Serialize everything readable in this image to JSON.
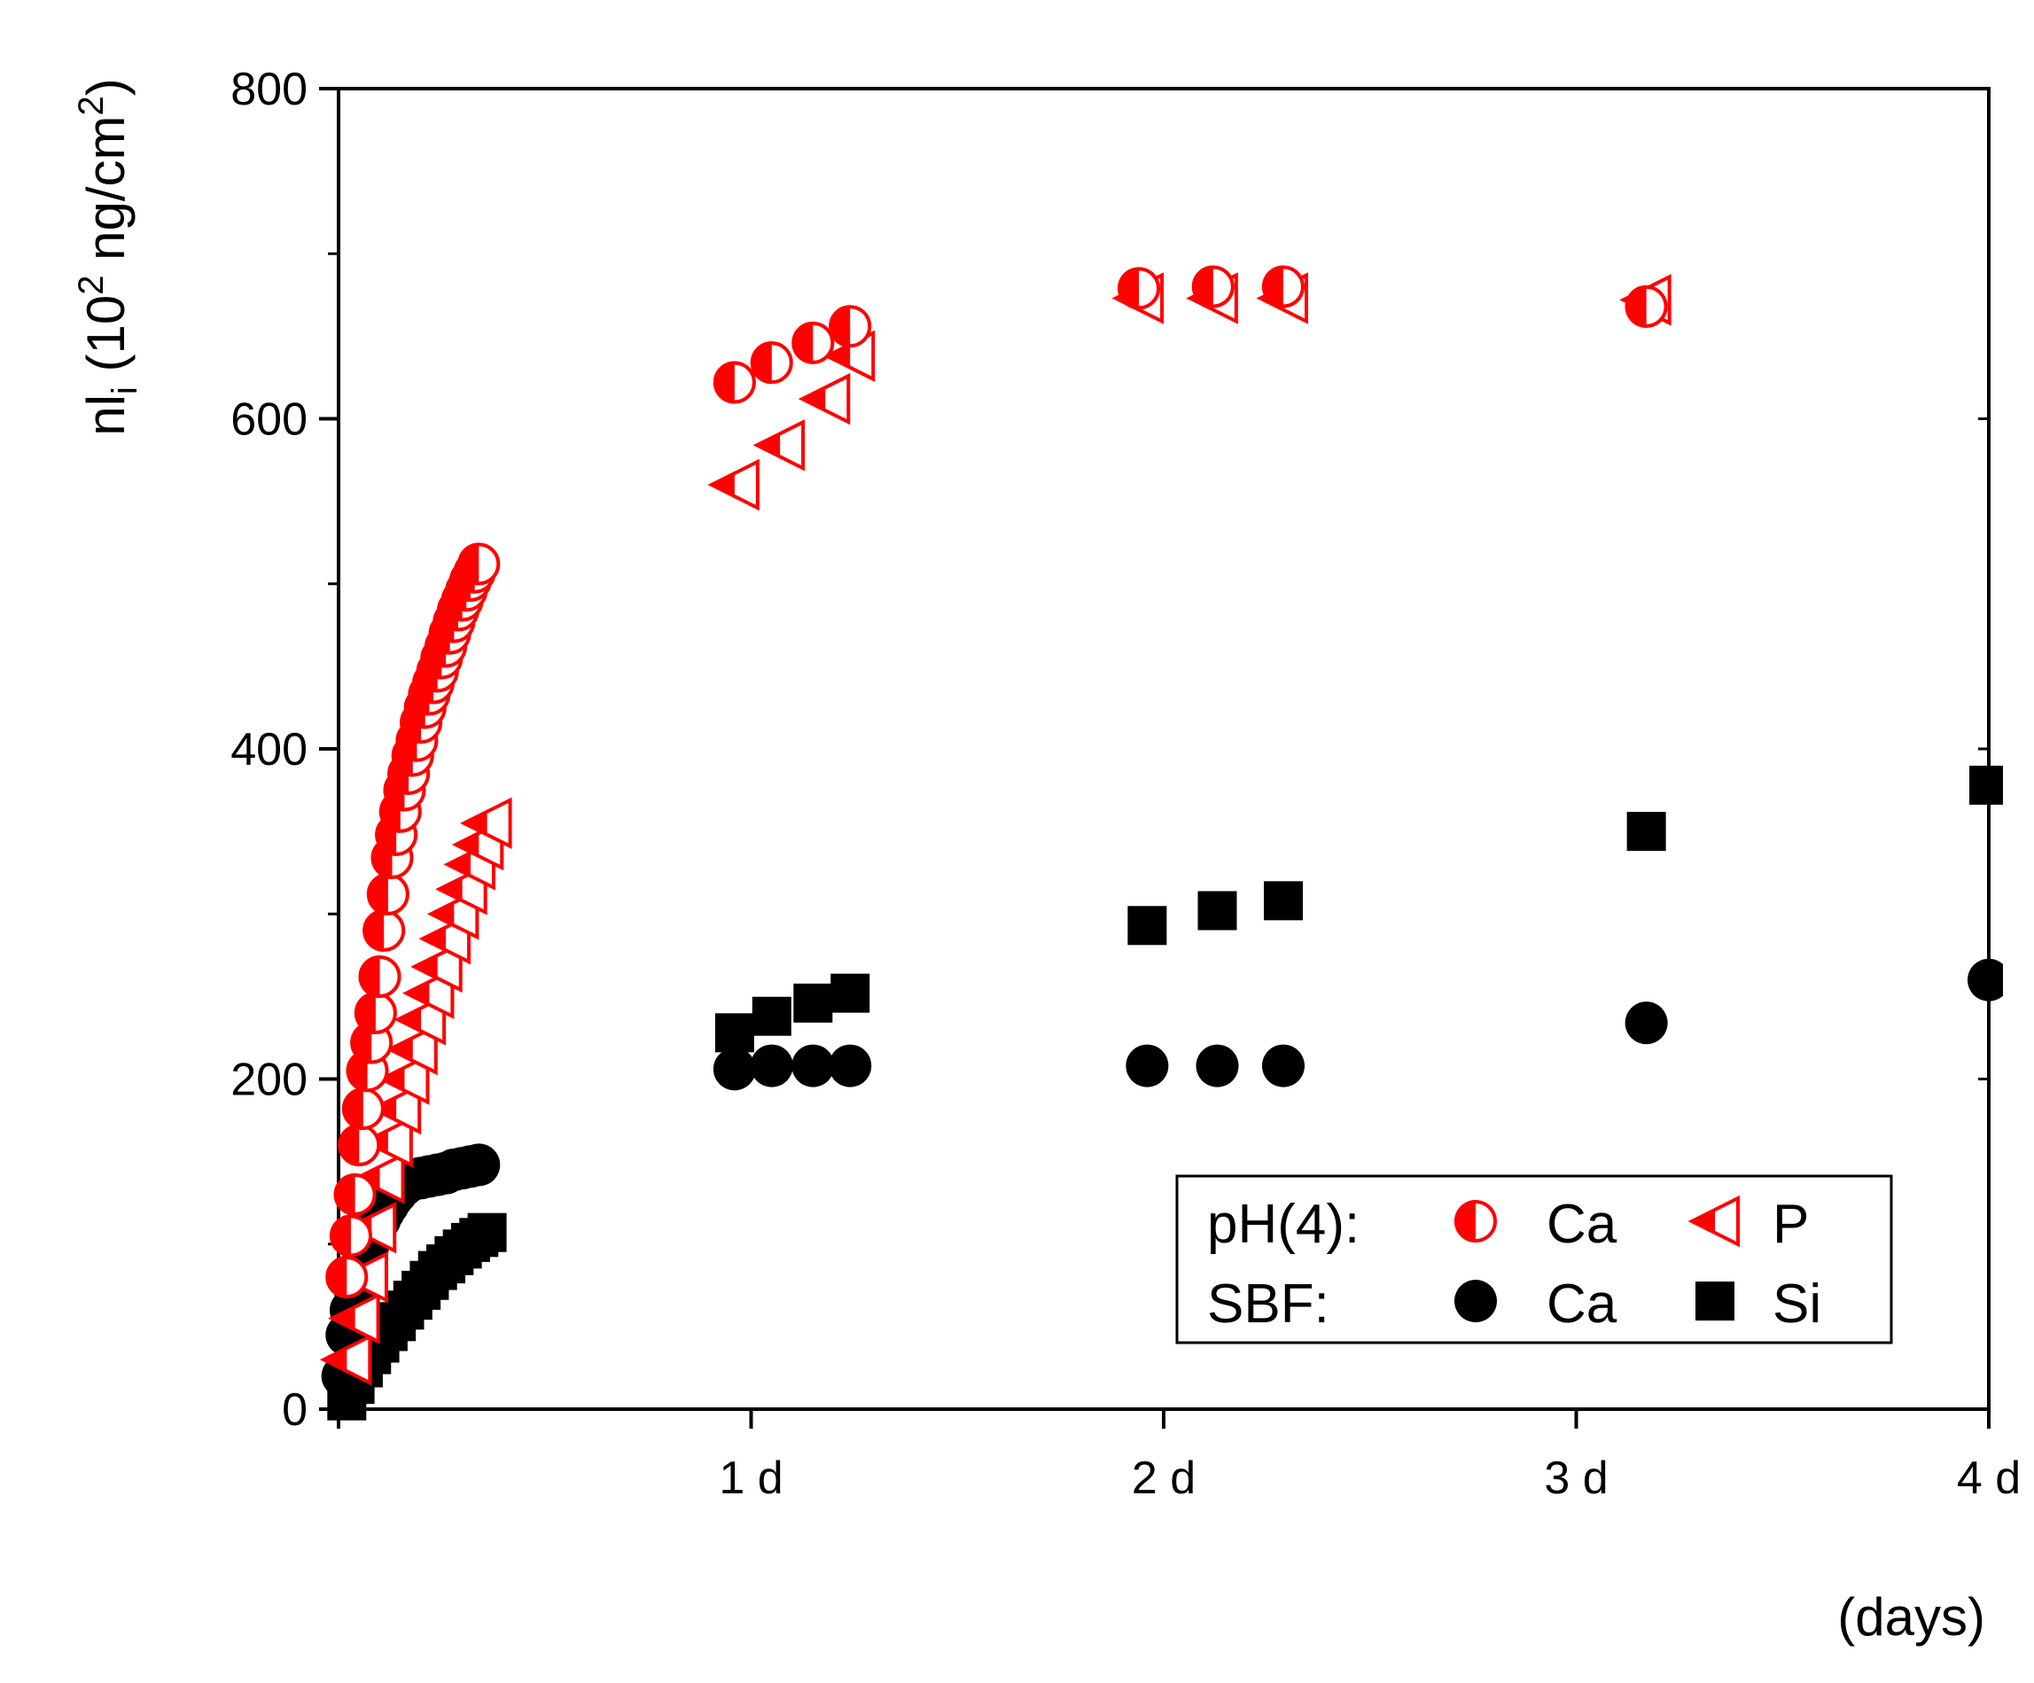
{
  "chart_data": {
    "type": "scatter",
    "title": "",
    "ylabel": {
      "prefix": "nl",
      "sub": "i",
      "mid1": " (10",
      "sup1": "2",
      "mid2": " ng/cm",
      "sup2": "2",
      "end": ")"
    },
    "xlabel": "(days)",
    "ylim": [
      0,
      800
    ],
    "xlim": [
      0,
      4
    ],
    "grid": false,
    "y_ticks": [
      "0",
      "200",
      "400",
      "600",
      "800"
    ],
    "x_ticks": [
      {
        "value": 1,
        "label": "1 d"
      },
      {
        "value": 2,
        "label": "2 d"
      },
      {
        "value": 3,
        "label": "3 d"
      },
      {
        "value": 4,
        "label": "4 d"
      }
    ],
    "legend": {
      "position": "bottom-right",
      "groups": [
        {
          "label": "pH(4):",
          "entries": [
            {
              "series": "ph4_ca",
              "text": "Ca"
            },
            {
              "series": "ph4_p",
              "text": "P"
            }
          ]
        },
        {
          "label": "SBF:",
          "entries": [
            {
              "series": "sbf_ca",
              "text": "Ca"
            },
            {
              "series": "sbf_si",
              "text": "Si"
            }
          ]
        }
      ]
    },
    "series": [
      {
        "id": "ph4_ca",
        "marker": "half-circle",
        "color": "#ff0000",
        "points": [
          [
            0.02,
            80
          ],
          [
            0.03,
            105
          ],
          [
            0.04,
            130
          ],
          [
            0.05,
            160
          ],
          [
            0.06,
            182
          ],
          [
            0.07,
            205
          ],
          [
            0.08,
            222
          ],
          [
            0.09,
            240
          ],
          [
            0.1,
            262
          ],
          [
            0.11,
            290
          ],
          [
            0.12,
            312
          ],
          [
            0.13,
            334
          ],
          [
            0.14,
            348
          ],
          [
            0.15,
            362
          ],
          [
            0.16,
            375
          ],
          [
            0.17,
            385
          ],
          [
            0.18,
            396
          ],
          [
            0.19,
            405
          ],
          [
            0.2,
            416
          ],
          [
            0.21,
            425
          ],
          [
            0.22,
            433
          ],
          [
            0.23,
            440
          ],
          [
            0.24,
            447
          ],
          [
            0.25,
            455
          ],
          [
            0.26,
            462
          ],
          [
            0.27,
            470
          ],
          [
            0.28,
            477
          ],
          [
            0.29,
            484
          ],
          [
            0.3,
            490
          ],
          [
            0.31,
            496
          ],
          [
            0.32,
            502
          ],
          [
            0.33,
            507
          ],
          [
            0.34,
            512
          ],
          [
            0.96,
            622
          ],
          [
            1.05,
            634
          ],
          [
            1.15,
            646
          ],
          [
            1.24,
            656
          ],
          [
            1.94,
            679
          ],
          [
            2.12,
            680
          ],
          [
            2.29,
            680
          ],
          [
            3.17,
            668
          ]
        ]
      },
      {
        "id": "ph4_p",
        "marker": "half-triangle",
        "color": "#ff0000",
        "points": [
          [
            0.02,
            30
          ],
          [
            0.04,
            55
          ],
          [
            0.06,
            80
          ],
          [
            0.08,
            110
          ],
          [
            0.1,
            140
          ],
          [
            0.12,
            162
          ],
          [
            0.14,
            182
          ],
          [
            0.16,
            200
          ],
          [
            0.18,
            218
          ],
          [
            0.2,
            236
          ],
          [
            0.22,
            252
          ],
          [
            0.24,
            268
          ],
          [
            0.26,
            285
          ],
          [
            0.28,
            300
          ],
          [
            0.3,
            315
          ],
          [
            0.32,
            330
          ],
          [
            0.34,
            342
          ],
          [
            0.36,
            355
          ],
          [
            0.96,
            560
          ],
          [
            1.07,
            584
          ],
          [
            1.18,
            612
          ],
          [
            1.24,
            638
          ],
          [
            1.94,
            673
          ],
          [
            2.12,
            673
          ],
          [
            2.29,
            673
          ],
          [
            3.17,
            672
          ]
        ]
      },
      {
        "id": "sbf_ca",
        "marker": "circle",
        "color": "#000000",
        "points": [
          [
            0.01,
            20
          ],
          [
            0.02,
            45
          ],
          [
            0.03,
            60
          ],
          [
            0.04,
            72
          ],
          [
            0.05,
            82
          ],
          [
            0.06,
            90
          ],
          [
            0.07,
            97
          ],
          [
            0.08,
            104
          ],
          [
            0.09,
            110
          ],
          [
            0.1,
            115
          ],
          [
            0.11,
            120
          ],
          [
            0.12,
            124
          ],
          [
            0.13,
            128
          ],
          [
            0.14,
            131
          ],
          [
            0.15,
            134
          ],
          [
            0.16,
            136
          ],
          [
            0.17,
            138
          ],
          [
            0.18,
            139
          ],
          [
            0.2,
            140
          ],
          [
            0.22,
            141
          ],
          [
            0.24,
            142
          ],
          [
            0.26,
            143
          ],
          [
            0.28,
            145
          ],
          [
            0.3,
            146
          ],
          [
            0.32,
            147
          ],
          [
            0.34,
            148
          ],
          [
            0.96,
            206
          ],
          [
            1.05,
            208
          ],
          [
            1.15,
            208
          ],
          [
            1.24,
            208
          ],
          [
            1.96,
            208
          ],
          [
            2.13,
            208
          ],
          [
            2.29,
            208
          ],
          [
            3.17,
            234
          ],
          [
            4.0,
            260
          ]
        ]
      },
      {
        "id": "sbf_si",
        "marker": "square",
        "color": "#000000",
        "points": [
          [
            0.02,
            5
          ],
          [
            0.04,
            15
          ],
          [
            0.06,
            25
          ],
          [
            0.08,
            33
          ],
          [
            0.1,
            40
          ],
          [
            0.12,
            47
          ],
          [
            0.14,
            53
          ],
          [
            0.16,
            60
          ],
          [
            0.18,
            66
          ],
          [
            0.2,
            72
          ],
          [
            0.22,
            78
          ],
          [
            0.24,
            84
          ],
          [
            0.26,
            88
          ],
          [
            0.28,
            93
          ],
          [
            0.3,
            97
          ],
          [
            0.32,
            101
          ],
          [
            0.34,
            104
          ],
          [
            0.36,
            107
          ],
          [
            0.96,
            228
          ],
          [
            1.05,
            238
          ],
          [
            1.15,
            246
          ],
          [
            1.24,
            252
          ],
          [
            1.96,
            293
          ],
          [
            2.13,
            302
          ],
          [
            2.29,
            308
          ],
          [
            3.17,
            350
          ],
          [
            4.0,
            378
          ]
        ]
      }
    ]
  }
}
